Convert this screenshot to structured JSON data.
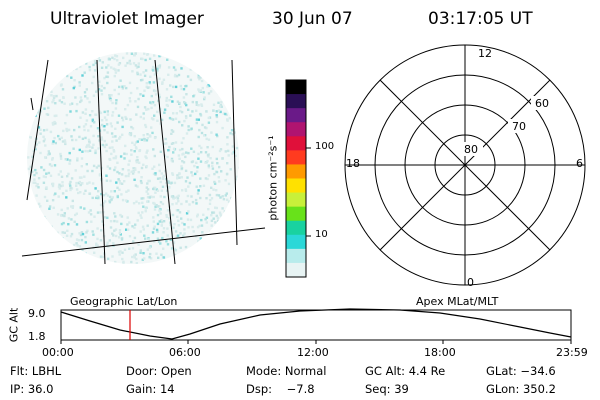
{
  "header": {
    "instrument": "Ultraviolet Imager",
    "date": "30 Jun 07",
    "time": "03:17:05 UT"
  },
  "colorbar": {
    "title": "photon cm⁻²s⁻¹",
    "ticks": [
      "100",
      "10"
    ],
    "colors": [
      "#000000",
      "#2a0f55",
      "#6a1a88",
      "#b01470",
      "#e0103a",
      "#ff3b1f",
      "#ff9a00",
      "#ffe100",
      "#c8f03a",
      "#68e21a",
      "#19d2a0",
      "#2bd8d8",
      "#b8ecec",
      "#e8f4f4"
    ]
  },
  "polar_plot": {
    "hour_labels": {
      "top": "12",
      "left": "18",
      "right": "6",
      "bottom": "0"
    },
    "lat_labels": [
      "60",
      "70",
      "80"
    ],
    "label": "Apex MLat/MLT"
  },
  "image_panel": {
    "label": "Geographic Lat/Lon"
  },
  "timeline": {
    "y_title": "GC Alt",
    "y_ticks": [
      "9.0",
      "1.8"
    ],
    "x_ticks": [
      "00:00",
      "06:00",
      "12:00",
      "18:00",
      "23:59"
    ],
    "current_marker_color": "#dd0000"
  },
  "info": {
    "flt": "Flt: LBHL",
    "door": "Door: Open",
    "mode": "Mode: Normal",
    "gcalt": "GC Alt: 4.4 Re",
    "glat": "GLat: −34.6",
    "ip": "IP: 36.0",
    "gain": "Gain: 14",
    "dsp": "Dsp:    −7.8",
    "seq": "Seq: 39",
    "glon": "GLon: 350.2"
  }
}
